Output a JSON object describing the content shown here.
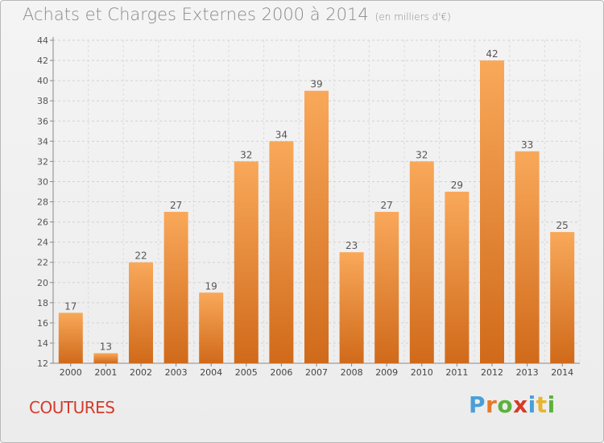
{
  "header": {
    "title": "Achats et Charges Externes 2000 à 2014",
    "unit": "(en milliers d'€)"
  },
  "footer": {
    "commune": "COUTURES",
    "logo_text": "Proxiti",
    "logo_colors": [
      "#4a9fd8",
      "#e8792a",
      "#5bb23a",
      "#d63a2a",
      "#4a9fd8",
      "#e8b42a",
      "#5bb23a"
    ]
  },
  "colors": {
    "bar_light": "#f9a85a",
    "bar_dark": "#d06a1a",
    "commune": "#d63a2a",
    "title": "#8a8a8a"
  },
  "chart_data": {
    "type": "bar",
    "title": "Achats et Charges Externes 2000 à 2014",
    "categories": [
      "2000",
      "2001",
      "2002",
      "2003",
      "2004",
      "2005",
      "2006",
      "2007",
      "2008",
      "2009",
      "2010",
      "2011",
      "2012",
      "2013",
      "2014"
    ],
    "values": [
      17,
      13,
      22,
      27,
      19,
      32,
      34,
      39,
      23,
      27,
      32,
      29,
      42,
      33,
      25
    ],
    "yticks": [
      12,
      14,
      16,
      18,
      20,
      22,
      24,
      26,
      28,
      30,
      32,
      34,
      36,
      38,
      40,
      42,
      44
    ],
    "ylim": [
      12,
      44
    ],
    "grid": true
  }
}
